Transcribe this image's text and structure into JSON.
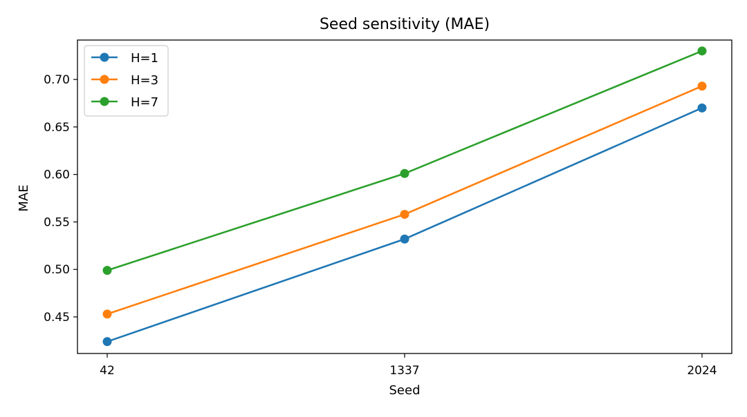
{
  "chart_data": {
    "type": "line",
    "title": "Seed sensitivity (MAE)",
    "xlabel": "Seed",
    "ylabel": "MAE",
    "categories": [
      "42",
      "1337",
      "2024"
    ],
    "ylim": [
      0.4115,
      0.7415
    ],
    "yticks": [
      "0.45",
      "0.50",
      "0.55",
      "0.60",
      "0.65",
      "0.70"
    ],
    "ytick_values": [
      0.45,
      0.5,
      0.55,
      0.6,
      0.65,
      0.7
    ],
    "grid": false,
    "legend_position": "top-left",
    "series": [
      {
        "name": "H=1",
        "color": "#1f77b4",
        "values": [
          0.424,
          0.532,
          0.67
        ]
      },
      {
        "name": "H=3",
        "color": "#ff7f0e",
        "values": [
          0.453,
          0.558,
          0.693
        ]
      },
      {
        "name": "H=7",
        "color": "#2ca02c",
        "values": [
          0.499,
          0.601,
          0.73
        ]
      }
    ]
  }
}
